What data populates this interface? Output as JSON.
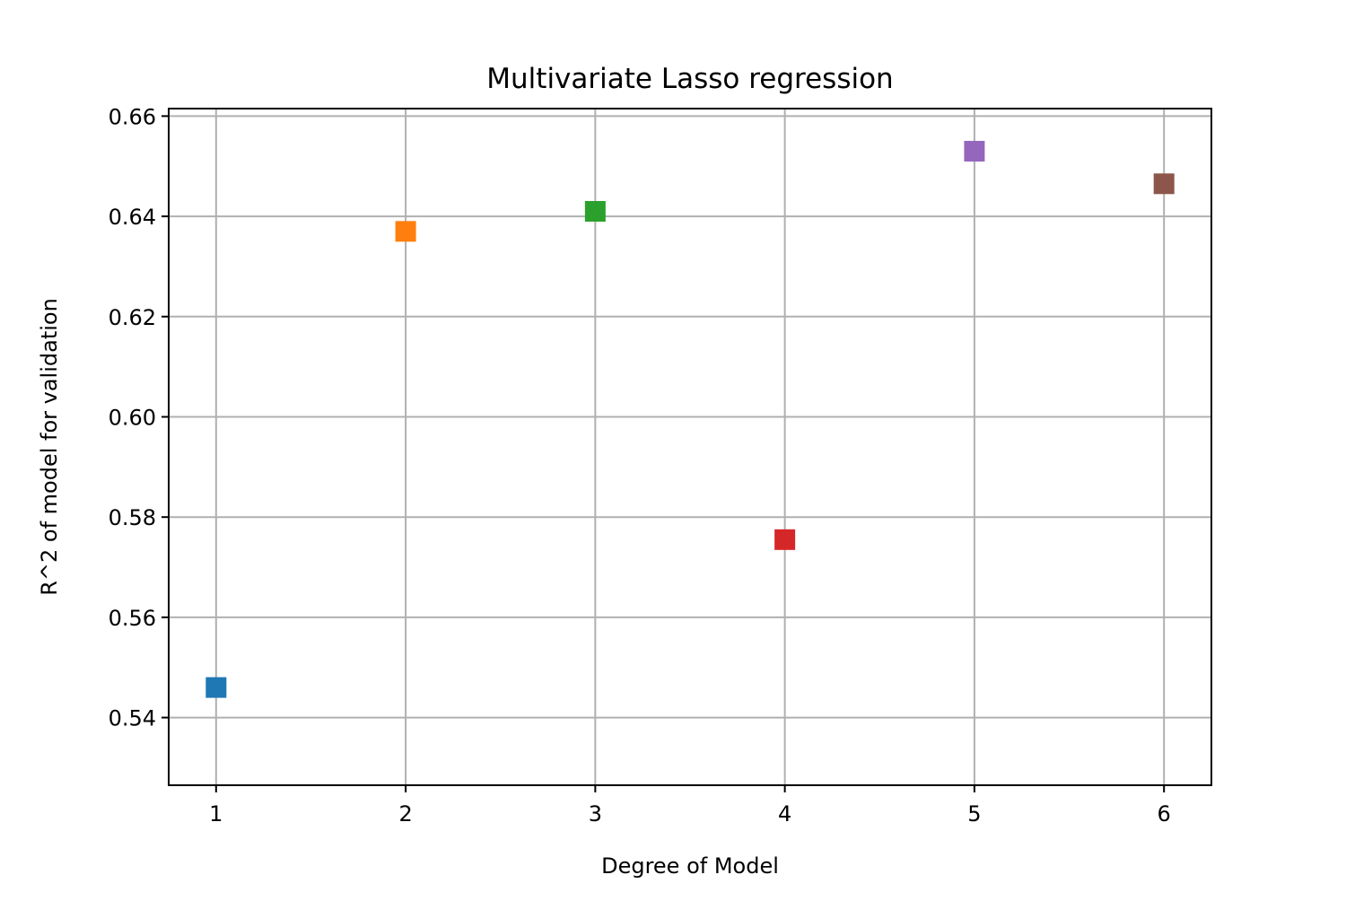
{
  "chart_data": {
    "type": "scatter",
    "title": "Multivariate Lasso regression",
    "xlabel": "Degree of Model",
    "ylabel": "R^2 of model for validation",
    "xlim": [
      0.75,
      6.25
    ],
    "ylim": [
      0.5265,
      0.6615
    ],
    "x_ticks": [
      1,
      2,
      3,
      4,
      5,
      6
    ],
    "y_ticks": [
      "0.54",
      "0.56",
      "0.58",
      "0.60",
      "0.62",
      "0.64",
      "0.66"
    ],
    "grid": true,
    "marker": "square",
    "points": [
      {
        "x": 1,
        "y": 0.546,
        "color": "#1f77b4"
      },
      {
        "x": 2,
        "y": 0.637,
        "color": "#ff7f0e"
      },
      {
        "x": 3,
        "y": 0.641,
        "color": "#2ca02c"
      },
      {
        "x": 4,
        "y": 0.5755,
        "color": "#d62728"
      },
      {
        "x": 5,
        "y": 0.653,
        "color": "#9467bd"
      },
      {
        "x": 6,
        "y": 0.6465,
        "color": "#8c564b"
      }
    ]
  }
}
